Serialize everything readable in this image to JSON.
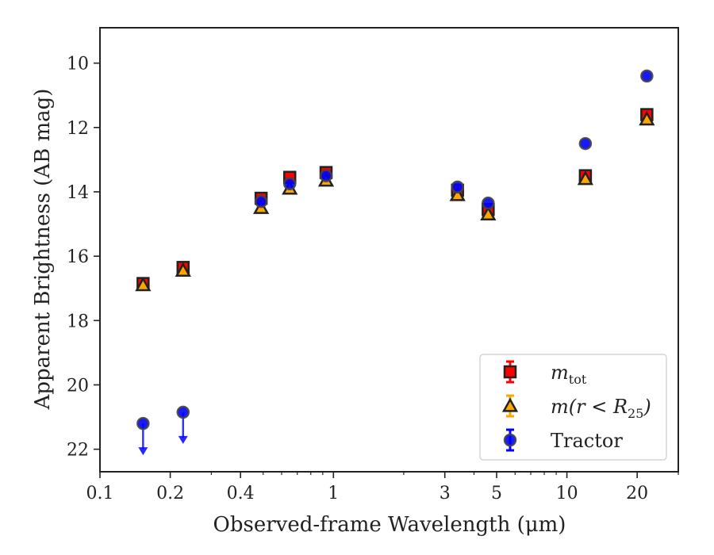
{
  "chart_data": {
    "type": "scatter",
    "xlabel": "Observed-frame Wavelength (μm)",
    "ylabel": "Apparent Brightness (AB mag)",
    "x_scale": "log",
    "xlim": [
      0.1,
      30
    ],
    "ylim": [
      22.7,
      8.9
    ],
    "y_inverted": true,
    "x_ticks": [
      {
        "value": 0.1,
        "label": "0.1"
      },
      {
        "value": 0.2,
        "label": "0.2"
      },
      {
        "value": 0.4,
        "label": "0.4"
      },
      {
        "value": 1,
        "label": "1"
      },
      {
        "value": 3,
        "label": "3"
      },
      {
        "value": 5,
        "label": "5"
      },
      {
        "value": 10,
        "label": "10"
      },
      {
        "value": 20,
        "label": "20"
      }
    ],
    "y_ticks": [
      {
        "value": 10,
        "label": "10"
      },
      {
        "value": 12,
        "label": "12"
      },
      {
        "value": 14,
        "label": "14"
      },
      {
        "value": 16,
        "label": "16"
      },
      {
        "value": 18,
        "label": "18"
      },
      {
        "value": 20,
        "label": "20"
      },
      {
        "value": 22,
        "label": "22"
      }
    ],
    "grid": false,
    "legend_position": "lower-right",
    "legend_entries": [
      {
        "label_main": "m",
        "label_sub": "tot",
        "label_plain": "",
        "series": "mtot"
      },
      {
        "label_main": "m(r < R",
        "label_sub": "25",
        "label_plain": ")",
        "series": "mr25"
      },
      {
        "label_main": "",
        "label_sub": "",
        "label_plain": "Tractor",
        "series": "tractor"
      }
    ],
    "series": [
      {
        "key": "mtot",
        "marker": "square",
        "color": "#ff0000",
        "errorbar_color": "#ff0000",
        "points": [
          {
            "x": 0.153,
            "y": 16.85
          },
          {
            "x": 0.227,
            "y": 16.35
          },
          {
            "x": 0.49,
            "y": 14.2
          },
          {
            "x": 0.65,
            "y": 13.55
          },
          {
            "x": 0.93,
            "y": 13.4
          },
          {
            "x": 3.4,
            "y": 13.95
          },
          {
            "x": 4.6,
            "y": 14.55
          },
          {
            "x": 12.0,
            "y": 13.5
          },
          {
            "x": 22.0,
            "y": 11.6
          }
        ]
      },
      {
        "key": "mr25",
        "marker": "triangle",
        "color": "#ffa500",
        "errorbar_color": "#ffa500",
        "points": [
          {
            "x": 0.153,
            "y": 16.9
          },
          {
            "x": 0.227,
            "y": 16.45
          },
          {
            "x": 0.49,
            "y": 14.5
          },
          {
            "x": 0.65,
            "y": 13.9
          },
          {
            "x": 0.93,
            "y": 13.65
          },
          {
            "x": 3.4,
            "y": 14.1
          },
          {
            "x": 4.6,
            "y": 14.7
          },
          {
            "x": 12.0,
            "y": 13.6
          },
          {
            "x": 22.0,
            "y": 11.75
          }
        ]
      },
      {
        "key": "tractor",
        "marker": "circle",
        "color": "#0000ff",
        "errorbar_color": "#0000ff",
        "points": [
          {
            "x": 0.153,
            "y": 21.2,
            "upper_limit": true
          },
          {
            "x": 0.227,
            "y": 20.85,
            "upper_limit": true
          },
          {
            "x": 0.49,
            "y": 14.3
          },
          {
            "x": 0.65,
            "y": 13.75
          },
          {
            "x": 0.93,
            "y": 13.5
          },
          {
            "x": 3.4,
            "y": 13.85
          },
          {
            "x": 4.6,
            "y": 14.35
          },
          {
            "x": 12.0,
            "y": 12.5
          },
          {
            "x": 22.0,
            "y": 10.4
          }
        ]
      }
    ]
  }
}
